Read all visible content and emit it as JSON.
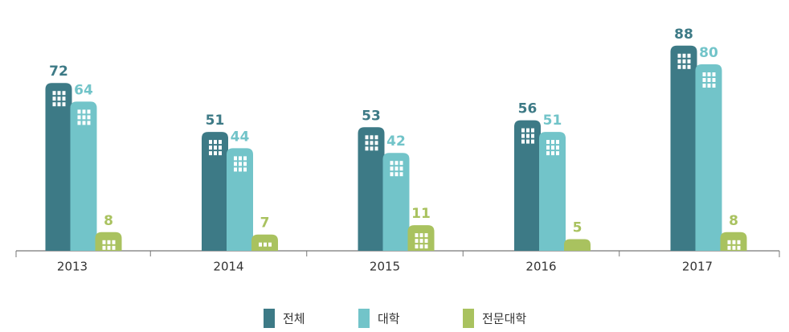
{
  "chart_data": {
    "type": "bar",
    "categories": [
      "2013",
      "2014",
      "2015",
      "2016",
      "2017"
    ],
    "series": [
      {
        "name": "전체",
        "color": "#3d7a86",
        "values": [
          72,
          51,
          53,
          56,
          88
        ]
      },
      {
        "name": "대학",
        "color": "#72c4c9",
        "values": [
          64,
          44,
          42,
          51,
          80
        ]
      },
      {
        "name": "전문대학",
        "color": "#a9c25f",
        "values": [
          8,
          7,
          11,
          5,
          8
        ]
      }
    ],
    "ylim": [
      0,
      100
    ]
  }
}
